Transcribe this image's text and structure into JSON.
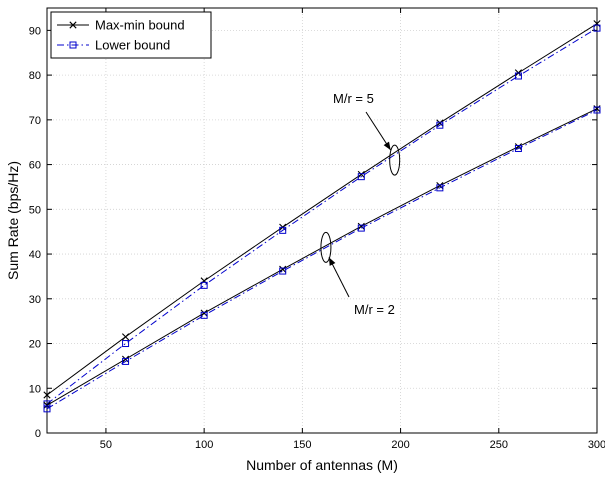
{
  "chart_data": {
    "type": "line",
    "xlabel": "Number of antennas (M)",
    "ylabel": "Sum Rate (bps/Hz)",
    "xlim": [
      20,
      300
    ],
    "ylim": [
      0,
      95
    ],
    "xticks": [
      50,
      100,
      150,
      200,
      250,
      300
    ],
    "yticks": [
      0,
      10,
      20,
      30,
      40,
      50,
      60,
      70,
      80,
      90
    ],
    "grid": true,
    "legend_position": "top-left",
    "x": [
      20,
      60,
      100,
      140,
      180,
      220,
      260,
      300
    ],
    "series": [
      {
        "name": "Max-min bound",
        "group": "M/r = 5",
        "color": "#000000",
        "marker": "x",
        "style": "solid",
        "values": [
          8.5,
          21.5,
          34.0,
          46.0,
          57.8,
          69.3,
          80.5,
          91.5
        ]
      },
      {
        "name": "Lower bound",
        "group": "M/r = 5",
        "color": "#0000cc",
        "marker": "square",
        "style": "dashdot",
        "values": [
          6.5,
          20.0,
          33.0,
          45.3,
          57.3,
          68.8,
          79.8,
          90.5
        ]
      },
      {
        "name": "Max-min bound",
        "group": "M/r = 2",
        "color": "#000000",
        "marker": "x",
        "style": "solid",
        "values": [
          6.2,
          16.5,
          26.8,
          36.6,
          46.2,
          55.3,
          64.0,
          72.5
        ]
      },
      {
        "name": "Lower bound",
        "group": "M/r = 2",
        "color": "#0000cc",
        "marker": "square",
        "style": "dashdot",
        "values": [
          5.4,
          16.0,
          26.3,
          36.2,
          45.8,
          54.8,
          63.6,
          72.2
        ]
      }
    ],
    "legend": [
      "Max-min bound",
      "Lower bound"
    ],
    "annotations": [
      {
        "text": "M/r = 5",
        "target_x": 197,
        "target_y": 61
      },
      {
        "text": "M/r = 2",
        "target_x": 162,
        "target_y": 41.5
      }
    ]
  }
}
